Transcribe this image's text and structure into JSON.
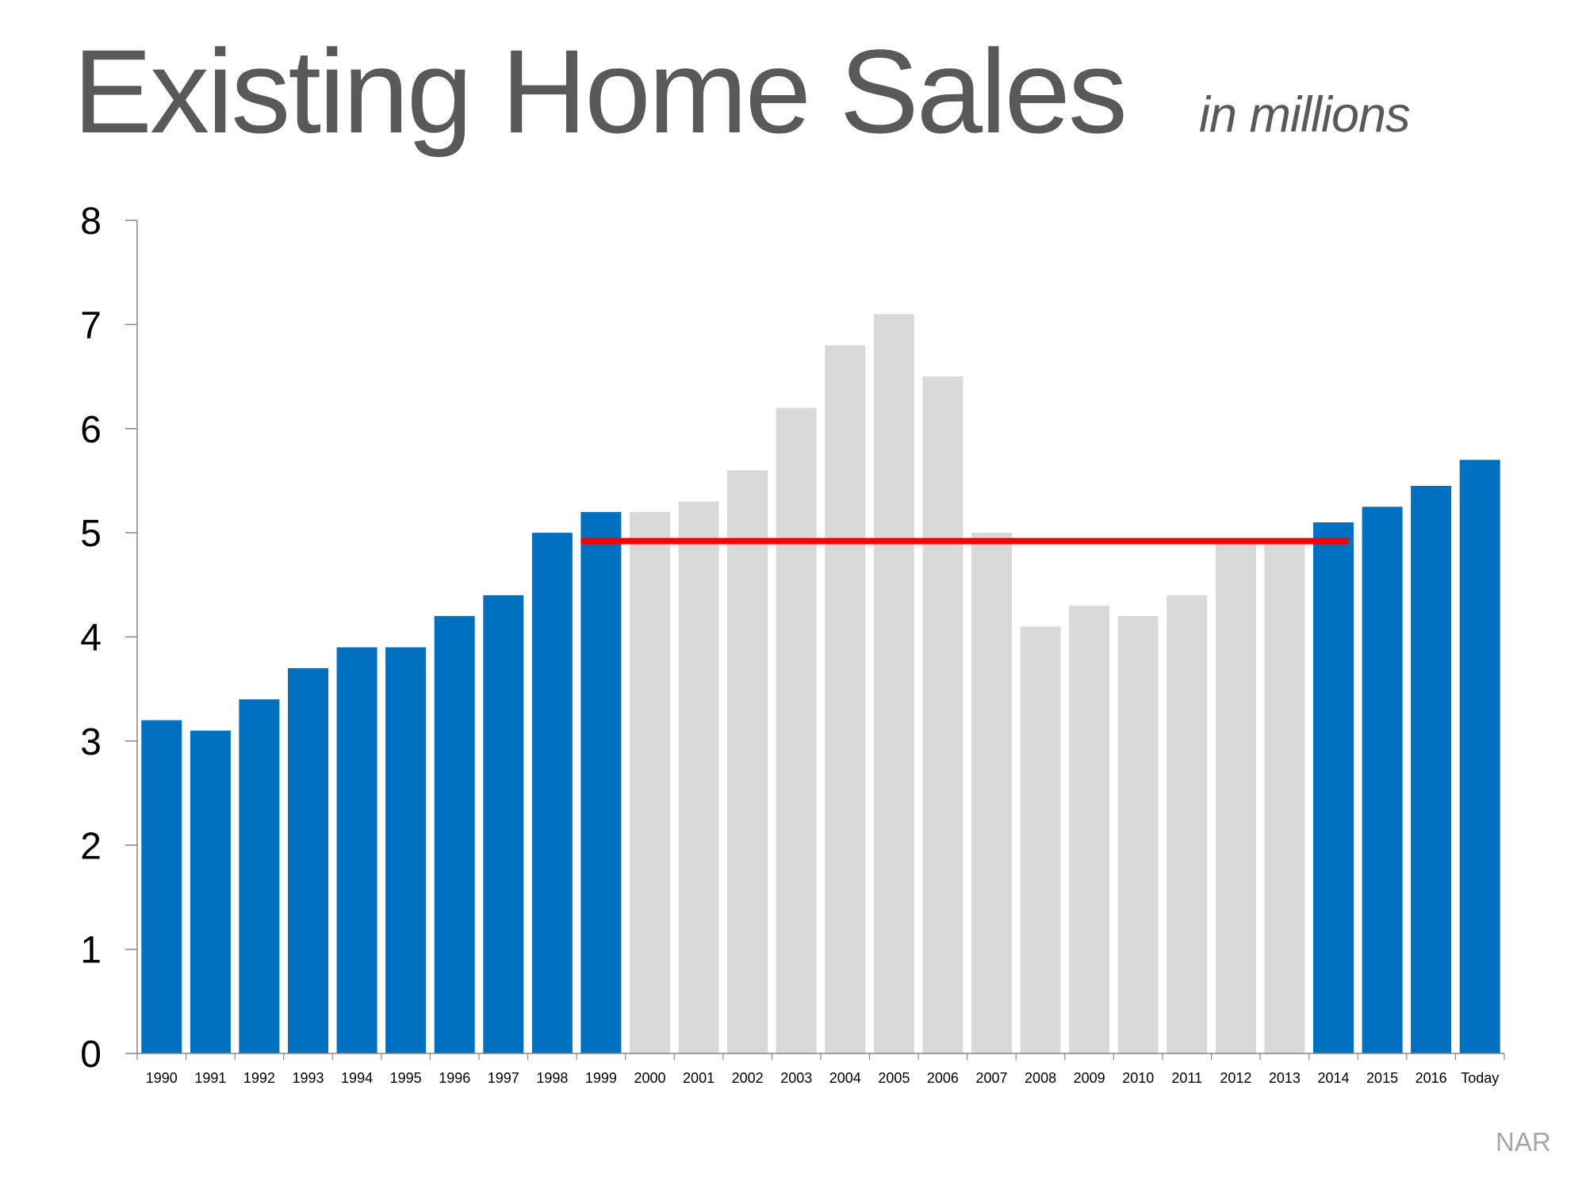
{
  "title": "Existing Home Sales",
  "subtitle": "in millions",
  "source": "NAR",
  "colors": {
    "highlight_bar": "#0070C0",
    "muted_bar": "#D9D9D9",
    "reference_line": "#FF0000",
    "axis": "#868686",
    "title": "#595959",
    "source": "#A6A6A6"
  },
  "chart_data": {
    "type": "bar",
    "title": "Existing Home Sales",
    "subtitle": "in millions",
    "xlabel": "",
    "ylabel": "",
    "ylim": [
      0,
      8
    ],
    "yticks": [
      0,
      1,
      2,
      3,
      4,
      5,
      6,
      7,
      8
    ],
    "grid": false,
    "legend": null,
    "categories": [
      "1990",
      "1991",
      "1992",
      "1993",
      "1994",
      "1995",
      "1996",
      "1997",
      "1998",
      "1999",
      "2000",
      "2001",
      "2002",
      "2003",
      "2004",
      "2005",
      "2006",
      "2007",
      "2008",
      "2009",
      "2010",
      "2011",
      "2012",
      "2013",
      "2014",
      "2015",
      "2016",
      "Today"
    ],
    "values": [
      3.2,
      3.1,
      3.4,
      3.7,
      3.9,
      3.9,
      4.2,
      4.4,
      5.0,
      5.2,
      5.2,
      5.3,
      5.6,
      6.2,
      6.8,
      7.1,
      6.5,
      5.0,
      4.1,
      4.3,
      4.2,
      4.4,
      4.9,
      4.9,
      5.1,
      5.25,
      5.45,
      5.7
    ],
    "highlighted": [
      true,
      true,
      true,
      true,
      true,
      true,
      true,
      true,
      true,
      true,
      false,
      false,
      false,
      false,
      false,
      false,
      false,
      false,
      false,
      false,
      false,
      false,
      false,
      false,
      true,
      true,
      true,
      true
    ],
    "annotations": [
      {
        "type": "hline",
        "y": 4.92,
        "from": "1999",
        "to": "2014",
        "color": "#FF0000"
      }
    ],
    "source": "NAR"
  }
}
